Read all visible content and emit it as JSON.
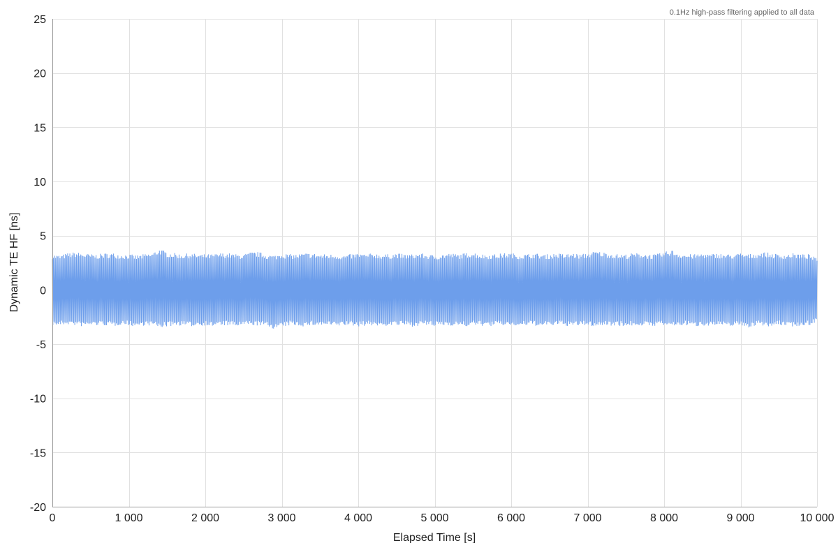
{
  "chart_data": {
    "type": "line",
    "title": "",
    "annotation": "0.1Hz high-pass filtering applied to all data",
    "xlabel": "Elapsed Time [s]",
    "ylabel": "Dynamic TE HF [ns]",
    "xlim": [
      0,
      10000
    ],
    "ylim": [
      -20,
      25
    ],
    "x_ticks": [
      0,
      1000,
      2000,
      3000,
      4000,
      5000,
      6000,
      7000,
      8000,
      9000,
      10000
    ],
    "x_tick_labels": [
      "0",
      "1 000",
      "2 000",
      "3 000",
      "4 000",
      "5 000",
      "6 000",
      "7 000",
      "8 000",
      "9 000",
      "10 000"
    ],
    "y_ticks": [
      25,
      20,
      15,
      10,
      5,
      0,
      -5,
      -10,
      -15,
      -20
    ],
    "y_tick_labels": [
      "25",
      "20",
      "15",
      "10",
      "5",
      "0",
      "-5",
      "-10",
      "-15",
      "-20"
    ],
    "grid": true,
    "legend": "none",
    "series": [
      {
        "color": "#6d9eeb",
        "x": [
          0,
          100,
          200,
          300,
          400,
          500,
          600,
          700,
          800,
          900,
          1000,
          1100,
          1200,
          1300,
          1400,
          1500,
          1600,
          1700,
          1800,
          1900,
          2000,
          2100,
          2200,
          2300,
          2400,
          2500,
          2600,
          2700,
          2800,
          2900,
          3000,
          3100,
          3200,
          3300,
          3400,
          3500,
          3600,
          3700,
          3800,
          3900,
          4000,
          4100,
          4200,
          4300,
          4400,
          4500,
          4600,
          4700,
          4800,
          4900,
          5000,
          5100,
          5200,
          5300,
          5400,
          5500,
          5600,
          5700,
          5800,
          5900,
          6000,
          6100,
          6200,
          6300,
          6400,
          6500,
          6600,
          6700,
          6800,
          6900,
          7000,
          7100,
          7200,
          7300,
          7400,
          7500,
          7600,
          7700,
          7800,
          7900,
          8000,
          8100,
          8200,
          8300,
          8400,
          8500,
          8600,
          8700,
          8800,
          8900,
          9000,
          9100,
          9200,
          9300,
          9400,
          9500,
          9600,
          9700,
          9800,
          9900,
          10000
        ],
        "y_max": [
          3.3,
          3.2,
          3.4,
          3.5,
          3.4,
          3.3,
          3.3,
          3.4,
          3.4,
          3.3,
          3.3,
          3.2,
          3.3,
          3.4,
          3.8,
          3.5,
          3.4,
          3.3,
          3.4,
          3.3,
          3.3,
          3.3,
          3.4,
          3.4,
          3.3,
          3.3,
          3.5,
          3.5,
          3.3,
          3.2,
          3.4,
          3.3,
          3.3,
          3.4,
          3.4,
          3.3,
          3.3,
          3.3,
          3.2,
          3.3,
          3.4,
          3.3,
          3.4,
          3.3,
          3.3,
          3.4,
          3.3,
          3.3,
          3.4,
          3.3,
          3.2,
          3.3,
          3.4,
          3.3,
          3.4,
          3.5,
          3.3,
          3.3,
          3.3,
          3.4,
          3.4,
          3.3,
          3.3,
          3.4,
          3.3,
          3.3,
          3.4,
          3.3,
          3.4,
          3.3,
          3.4,
          3.6,
          3.5,
          3.4,
          3.3,
          3.3,
          3.4,
          3.4,
          3.3,
          3.3,
          3.5,
          3.7,
          3.4,
          3.3,
          3.3,
          3.4,
          3.3,
          3.4,
          3.3,
          3.3,
          3.4,
          3.3,
          3.4,
          3.5,
          3.4,
          3.3,
          3.3,
          3.4,
          3.3,
          3.3,
          2.9
        ],
        "y_min": [
          -3.3,
          -3.3,
          -3.2,
          -3.3,
          -3.4,
          -3.3,
          -3.3,
          -3.3,
          -3.4,
          -3.2,
          -3.3,
          -3.4,
          -3.3,
          -3.3,
          -3.5,
          -3.4,
          -3.3,
          -3.3,
          -3.4,
          -3.3,
          -3.3,
          -3.4,
          -3.3,
          -3.3,
          -3.4,
          -3.3,
          -3.3,
          -3.3,
          -3.4,
          -3.6,
          -3.5,
          -3.3,
          -3.3,
          -3.4,
          -3.3,
          -3.3,
          -3.3,
          -3.4,
          -3.3,
          -3.3,
          -3.4,
          -3.3,
          -3.3,
          -3.4,
          -3.3,
          -3.3,
          -3.3,
          -3.4,
          -3.3,
          -3.3,
          -3.4,
          -3.3,
          -3.3,
          -3.3,
          -3.4,
          -3.3,
          -3.3,
          -3.4,
          -3.3,
          -3.3,
          -3.3,
          -3.4,
          -3.3,
          -3.3,
          -3.4,
          -3.3,
          -3.3,
          -3.3,
          -3.4,
          -3.3,
          -3.3,
          -3.4,
          -3.3,
          -3.3,
          -3.3,
          -3.4,
          -3.3,
          -3.3,
          -3.4,
          -3.3,
          -3.3,
          -3.4,
          -3.3,
          -3.3,
          -3.4,
          -3.3,
          -3.3,
          -3.3,
          -3.4,
          -3.3,
          -3.3,
          -3.5,
          -3.3,
          -3.3,
          -3.4,
          -3.3,
          -3.3,
          -3.4,
          -3.3,
          -3.3,
          -2.9
        ]
      }
    ]
  }
}
